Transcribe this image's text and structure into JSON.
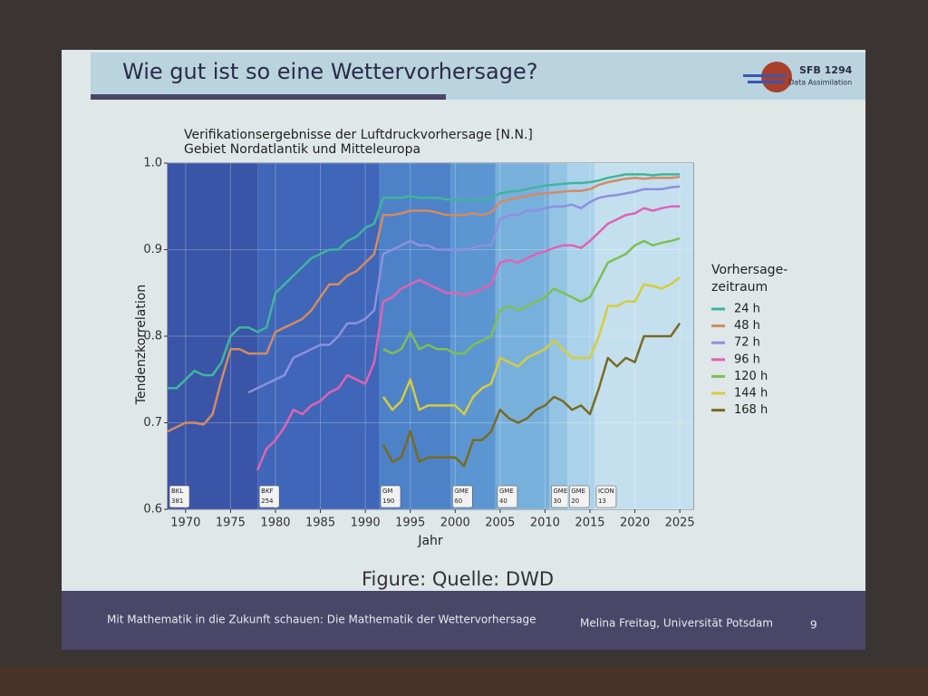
{
  "slide": {
    "title": "Wie gut ist so eine Wettervorhersage?",
    "logo_title": "SFB 1294",
    "logo_subtitle": "Data Assimilation",
    "caption": "Figure: Quelle: DWD",
    "footer_left": "Mit Mathematik in die Zukunft schauen: Die Mathematik der Wettervorhersage",
    "footer_right": "Melina Freitag, Universität Potsdam",
    "page": "9"
  },
  "chart_data": {
    "type": "line",
    "title": [
      "Verifikationsergebnisse der Luftdruckvorhersage [N.N.]",
      "Gebiet Nordatlantik und Mitteleuropa"
    ],
    "x_label": "Jahr",
    "y_label": "Tendenzkorrelation",
    "legend_title": [
      "Vorhersage-",
      "zeitraum"
    ],
    "legend": "right",
    "grid": true,
    "xlim": [
      1968,
      2026.5
    ],
    "ylim": [
      0.6,
      1.0
    ],
    "xticks": [
      1970,
      1975,
      1980,
      1985,
      1990,
      1995,
      2000,
      2005,
      2010,
      2015,
      2020,
      2025
    ],
    "yticks": [
      0.6,
      0.7,
      0.8,
      0.9,
      {
        "value": 1,
        "label": "1.0"
      }
    ],
    "eras": [
      {
        "label": "BKL",
        "resolution": "381",
        "start": 1968,
        "end": 1978,
        "color": "#3a55a8"
      },
      {
        "label": "BKF",
        "resolution": "254",
        "start": 1978,
        "end": 1991.5,
        "color": "#3f66b8"
      },
      {
        "label": "GM",
        "resolution": "190",
        "start": 1991.5,
        "end": 1999.5,
        "color": "#4d82c8"
      },
      {
        "label": "GME",
        "resolution": "60",
        "start": 1999.5,
        "end": 2004.5,
        "color": "#5b96d2"
      },
      {
        "label": "GME",
        "resolution": "40",
        "start": 2004.5,
        "end": 2010.5,
        "color": "#78b0dc"
      },
      {
        "label": "GME",
        "resolution": "30",
        "start": 2010.5,
        "end": 2012.5,
        "color": "#94c4e4"
      },
      {
        "label": "GME",
        "resolution": "20",
        "start": 2012.5,
        "end": 2015.5,
        "color": "#aad2ea"
      },
      {
        "label": "ICON",
        "resolution": "13",
        "start": 2015.5,
        "end": 2026.5,
        "color": "#c4e0ee"
      }
    ],
    "x": [
      1968,
      1969,
      1970,
      1971,
      1972,
      1973,
      1974,
      1975,
      1976,
      1977,
      1978,
      1979,
      1980,
      1981,
      1982,
      1983,
      1984,
      1985,
      1986,
      1987,
      1988,
      1989,
      1990,
      1991,
      1992,
      1993,
      1994,
      1995,
      1996,
      1997,
      1998,
      1999,
      2000,
      2001,
      2002,
      2003,
      2004,
      2005,
      2006,
      2007,
      2008,
      2009,
      2010,
      2011,
      2012,
      2013,
      2014,
      2015,
      2016,
      2017,
      2018,
      2019,
      2020,
      2021,
      2022,
      2023,
      2024,
      2025
    ],
    "series": [
      {
        "name": "24 h",
        "color": "#3fb59c",
        "values": [
          0.74,
          0.74,
          0.75,
          0.76,
          0.755,
          0.755,
          0.77,
          0.8,
          0.81,
          0.81,
          0.805,
          0.81,
          0.85,
          0.86,
          0.87,
          0.88,
          0.89,
          0.895,
          0.9,
          0.9,
          0.91,
          0.915,
          0.925,
          0.93,
          0.96,
          0.96,
          0.96,
          0.962,
          0.96,
          0.96,
          0.96,
          0.958,
          0.958,
          0.957,
          0.958,
          0.957,
          0.96,
          0.965,
          0.967,
          0.968,
          0.97,
          0.972,
          0.974,
          0.975,
          0.976,
          0.977,
          0.977,
          0.978,
          0.98,
          0.983,
          0.985,
          0.987,
          0.987,
          0.987,
          0.986,
          0.987,
          0.987,
          0.987
        ]
      },
      {
        "name": "48 h",
        "color": "#d48a62",
        "values": [
          0.69,
          0.695,
          0.7,
          0.7,
          0.698,
          0.71,
          0.75,
          0.785,
          0.785,
          0.78,
          0.78,
          0.78,
          0.805,
          0.81,
          0.815,
          0.82,
          0.83,
          0.845,
          0.86,
          0.86,
          0.87,
          0.875,
          0.885,
          0.895,
          0.94,
          0.94,
          0.942,
          0.945,
          0.945,
          0.945,
          0.943,
          0.94,
          0.94,
          0.94,
          0.942,
          0.94,
          0.943,
          0.955,
          0.958,
          0.96,
          0.962,
          0.964,
          0.965,
          0.966,
          0.967,
          0.968,
          0.968,
          0.97,
          0.975,
          0.978,
          0.98,
          0.982,
          0.983,
          0.982,
          0.983,
          0.983,
          0.983,
          0.984
        ]
      },
      {
        "name": "72 h",
        "color": "#8e8fe0",
        "values": [
          null,
          null,
          null,
          null,
          null,
          null,
          null,
          null,
          null,
          0.735,
          0.74,
          0.745,
          0.75,
          0.755,
          0.775,
          0.78,
          0.785,
          0.79,
          0.79,
          0.8,
          0.815,
          0.815,
          0.82,
          0.83,
          0.895,
          0.9,
          0.905,
          0.91,
          0.905,
          0.905,
          0.9,
          0.9,
          0.9,
          0.9,
          0.902,
          0.905,
          0.905,
          0.935,
          0.94,
          0.94,
          0.945,
          0.945,
          0.948,
          0.95,
          0.95,
          0.952,
          0.948,
          0.955,
          0.96,
          0.962,
          0.963,
          0.965,
          0.967,
          0.97,
          0.97,
          0.97,
          0.972,
          0.973
        ]
      },
      {
        "name": "96 h",
        "color": "#e062b2",
        "values": [
          null,
          null,
          null,
          null,
          null,
          null,
          null,
          null,
          null,
          null,
          0.645,
          0.67,
          0.68,
          0.695,
          0.715,
          0.71,
          0.72,
          0.725,
          0.735,
          0.74,
          0.755,
          0.75,
          0.745,
          0.77,
          0.84,
          0.845,
          0.855,
          0.86,
          0.865,
          0.86,
          0.855,
          0.85,
          0.85,
          0.848,
          0.85,
          0.855,
          0.86,
          0.885,
          0.888,
          0.885,
          0.89,
          0.895,
          0.898,
          0.902,
          0.905,
          0.905,
          0.902,
          0.91,
          0.92,
          0.93,
          0.935,
          0.94,
          0.942,
          0.948,
          0.945,
          0.948,
          0.95,
          0.95
        ]
      },
      {
        "name": "120 h",
        "color": "#7cc052",
        "values": [
          null,
          null,
          null,
          null,
          null,
          null,
          null,
          null,
          null,
          null,
          null,
          null,
          null,
          null,
          null,
          null,
          null,
          null,
          null,
          null,
          null,
          null,
          null,
          null,
          0.785,
          0.78,
          0.785,
          0.805,
          0.785,
          0.79,
          0.785,
          0.785,
          0.78,
          0.78,
          0.79,
          0.795,
          0.8,
          0.83,
          0.835,
          0.83,
          0.835,
          0.84,
          0.845,
          0.855,
          0.85,
          0.845,
          0.84,
          0.845,
          0.865,
          0.885,
          0.89,
          0.895,
          0.905,
          0.91,
          0.905,
          0.908,
          0.91,
          0.913
        ]
      },
      {
        "name": "144 h",
        "color": "#d6cc3c",
        "values": [
          null,
          null,
          null,
          null,
          null,
          null,
          null,
          null,
          null,
          null,
          null,
          null,
          null,
          null,
          null,
          null,
          null,
          null,
          null,
          null,
          null,
          null,
          null,
          null,
          0.73,
          0.715,
          0.725,
          0.75,
          0.715,
          0.72,
          0.72,
          0.72,
          0.72,
          0.71,
          0.73,
          0.74,
          0.745,
          0.775,
          0.77,
          0.765,
          0.775,
          0.78,
          0.785,
          0.795,
          0.785,
          0.775,
          0.775,
          0.775,
          0.8,
          0.835,
          0.835,
          0.84,
          0.84,
          0.86,
          0.858,
          0.855,
          0.86,
          0.868
        ]
      },
      {
        "name": "168 h",
        "color": "#7a6a22",
        "values": [
          null,
          null,
          null,
          null,
          null,
          null,
          null,
          null,
          null,
          null,
          null,
          null,
          null,
          null,
          null,
          null,
          null,
          null,
          null,
          null,
          null,
          null,
          null,
          null,
          0.675,
          0.655,
          0.66,
          0.69,
          0.655,
          0.66,
          0.66,
          0.66,
          0.66,
          0.65,
          0.68,
          0.68,
          0.69,
          0.715,
          0.705,
          0.7,
          0.705,
          0.715,
          0.72,
          0.73,
          0.725,
          0.715,
          0.72,
          0.71,
          0.74,
          0.775,
          0.765,
          0.775,
          0.77,
          0.8,
          0.8,
          0.8,
          0.8,
          0.815
        ]
      }
    ]
  }
}
